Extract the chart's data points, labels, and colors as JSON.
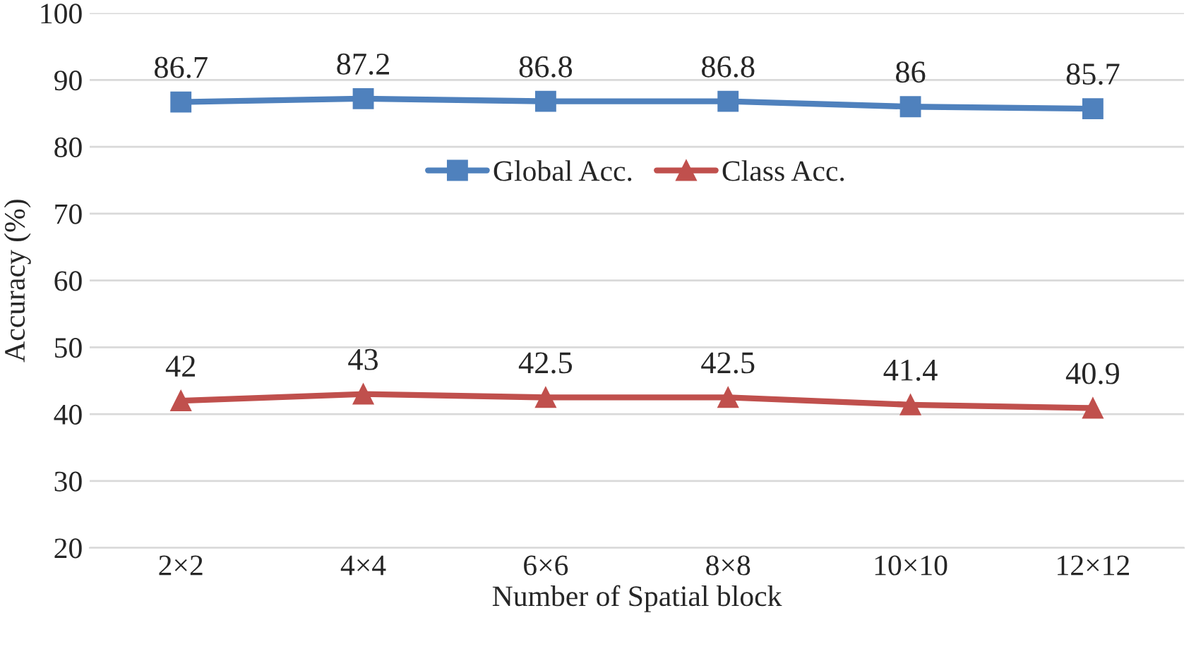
{
  "chart_data": {
    "type": "line",
    "xlabel": "Number of Spatial block",
    "ylabel": "Accuracy (%)",
    "categories": [
      "2×2",
      "4×4",
      "6×6",
      "8×8",
      "10×10",
      "12×12"
    ],
    "series": [
      {
        "name": "Global Acc.",
        "color": "#4f81bd",
        "marker": "square",
        "values": [
          86.7,
          87.2,
          86.8,
          86.8,
          86,
          85.7
        ]
      },
      {
        "name": "Class Acc.",
        "color": "#c0504d",
        "marker": "triangle",
        "values": [
          42,
          43,
          42.5,
          42.5,
          41.4,
          40.9
        ]
      }
    ],
    "ylim": [
      20,
      100
    ],
    "yticks": [
      20,
      30,
      40,
      50,
      60,
      70,
      80,
      90,
      100
    ],
    "grid": "y",
    "legend": "center",
    "data_labels": true,
    "line_style": "solid"
  }
}
